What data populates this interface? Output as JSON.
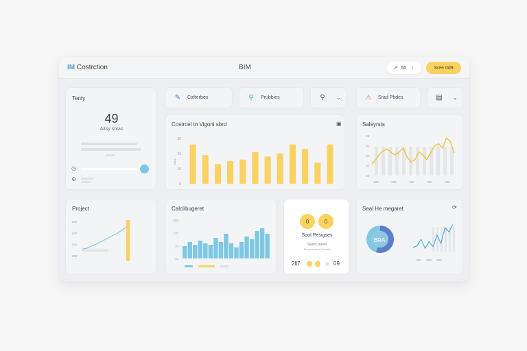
{
  "app": {
    "brand_accent": "IM",
    "brand_name": "Costrction",
    "center_title": "BIM",
    "ctrl_icon": "↗",
    "ctrl_value": "50",
    "ctrl_more": "⋮",
    "primary_button": "Sree 0d9"
  },
  "chips": {
    "c1_label": "Cafterbes",
    "c1_icon": "edit-icon",
    "c2_label": "Prubbies",
    "c2_icon": "search-icon",
    "c3_icon": "search-icon",
    "c3_chevron": "⌄",
    "c4_label": "Srad Pbdes",
    "c4_icon": "alert-icon",
    "c5_icon": "clipboard-icon",
    "c5_chevron": "⌄"
  },
  "today": {
    "title": "Tenty",
    "big_value": "49",
    "sub_label": "Aitsy sotas",
    "slider_level": 0.95
  },
  "main_chart": {
    "title": "Costrcel tn Vigonl sbrd",
    "y_ticks": [
      "30",
      "20",
      "10",
      "0"
    ],
    "y_label": "Value"
  },
  "projects_mini": {
    "title": "Project",
    "y_ticks": [
      "200",
      "200",
      "200",
      "200"
    ]
  },
  "calc_chart": {
    "title": "Calcl/bugeret",
    "y_ticks": [
      "200",
      "100",
      "10",
      "10"
    ]
  },
  "status_card": {
    "badge_1": "0",
    "badge_2": "0",
    "title": "Soot Pesigses",
    "line_1": "Seard Dreon",
    "line_2": "Reserts enus nfornsd",
    "foot_left": "2ll7",
    "foot_right": "09"
  },
  "sales_card": {
    "title": "Saleyrsts",
    "y_ticks": [
      "45",
      "35",
      "30",
      "20",
      "10"
    ],
    "x_ticks": [
      "200",
      "200",
      "200",
      "200",
      "200"
    ]
  },
  "mgmt_card": {
    "title": "Seal He megaret",
    "donut_label": "BRA",
    "x_ticks": [
      "200",
      "200",
      "200"
    ]
  },
  "colors": {
    "yellow": "#f9d262",
    "blue": "#7ec8e3",
    "navy": "#5a7fc7",
    "bg": "#eceef2"
  },
  "chart_data": [
    {
      "type": "bar",
      "title": "Costrcel tn Vigonl sbrd",
      "categories": [
        "1",
        "2",
        "3",
        "4",
        "5",
        "6",
        "7",
        "8",
        "9",
        "10",
        "11",
        "12"
      ],
      "values": [
        26,
        19,
        13,
        15,
        16,
        21,
        18,
        20,
        26,
        23,
        14,
        26
      ],
      "ylim": [
        0,
        30
      ]
    },
    {
      "type": "bar",
      "title": "Calcl/bugeret",
      "categories": [
        "1",
        "2",
        "3",
        "4",
        "5",
        "6",
        "7",
        "8",
        "9",
        "10",
        "11",
        "12",
        "13",
        "14",
        "15",
        "16",
        "17"
      ],
      "values": [
        9,
        12,
        10,
        13,
        11,
        10,
        15,
        12,
        18,
        11,
        8,
        12,
        16,
        14,
        20,
        22,
        18
      ],
      "ylim": [
        0,
        28
      ]
    },
    {
      "type": "line",
      "title": "Saleyrsts",
      "x": [
        0,
        1,
        2,
        3,
        4,
        5,
        6,
        7,
        8,
        9,
        10,
        11,
        12,
        13,
        14,
        15,
        16,
        17,
        18,
        19,
        20,
        21
      ],
      "values": [
        20,
        24,
        29,
        32,
        33,
        30,
        28,
        31,
        34,
        26,
        22,
        24,
        31,
        28,
        24,
        30,
        36,
        38,
        34,
        43,
        40,
        30
      ],
      "ylim": [
        10,
        45
      ]
    },
    {
      "type": "line",
      "title": "Project",
      "x": [
        0,
        1,
        2,
        3,
        4,
        5,
        6,
        7,
        8,
        9,
        10
      ],
      "values": [
        10,
        12,
        18,
        22,
        28,
        34,
        40,
        46,
        52,
        60,
        68
      ],
      "ylim": [
        0,
        80
      ]
    },
    {
      "type": "line",
      "title": "Seal He megaret",
      "x": [
        0,
        1,
        2,
        3,
        4,
        5,
        6,
        7,
        8,
        9,
        10
      ],
      "values": [
        10,
        14,
        30,
        8,
        24,
        12,
        40,
        20,
        58,
        48,
        66
      ],
      "ylim": [
        0,
        70
      ]
    },
    {
      "type": "pie",
      "title": "Seal He megaret",
      "values": [
        55,
        45
      ]
    }
  ]
}
